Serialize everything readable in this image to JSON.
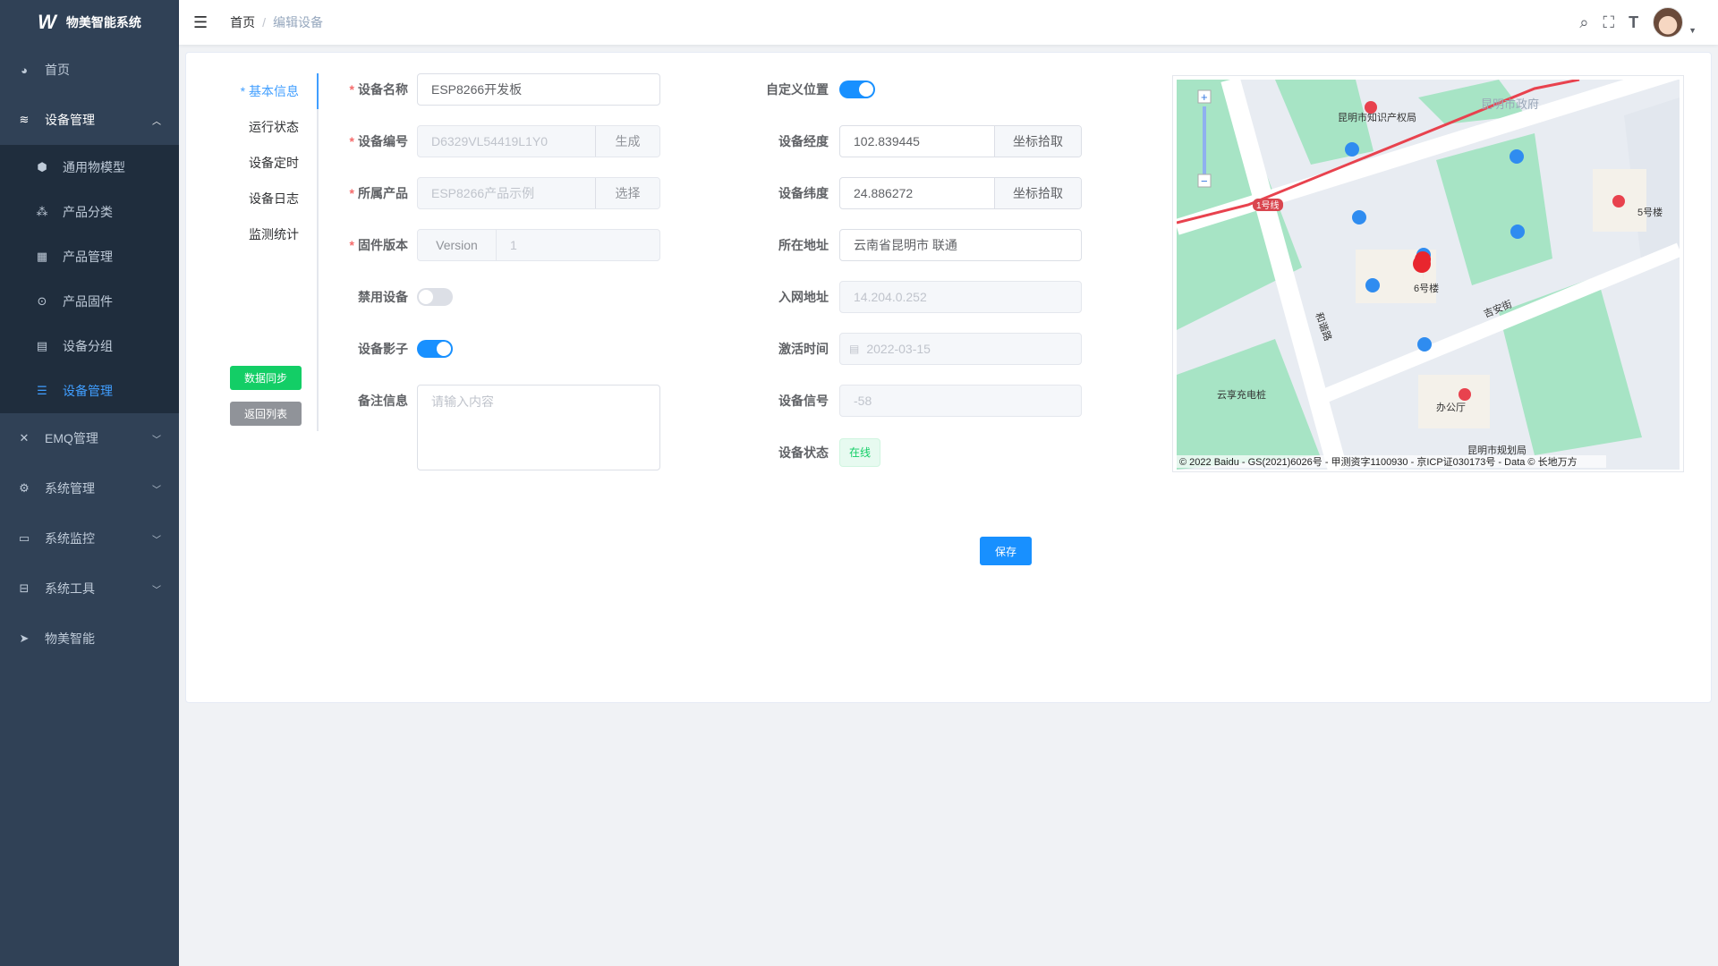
{
  "app": {
    "title": "物美智能系统"
  },
  "sidebar": {
    "items": [
      {
        "label": "首页",
        "icon": "dashboard-icon"
      },
      {
        "label": "设备管理",
        "icon": "layers-icon",
        "expanded": true
      },
      {
        "label": "通用物模型",
        "icon": "cube-icon"
      },
      {
        "label": "产品分类",
        "icon": "tree-icon"
      },
      {
        "label": "产品管理",
        "icon": "grid-icon"
      },
      {
        "label": "产品固件",
        "icon": "firmware-icon"
      },
      {
        "label": "设备分组",
        "icon": "group-icon"
      },
      {
        "label": "设备管理",
        "icon": "list-icon",
        "active": true
      },
      {
        "label": "EMQ管理",
        "icon": "emq-icon"
      },
      {
        "label": "系统管理",
        "icon": "gear-icon"
      },
      {
        "label": "系统监控",
        "icon": "monitor-icon"
      },
      {
        "label": "系统工具",
        "icon": "toolbox-icon"
      },
      {
        "label": "物美智能",
        "icon": "send-icon"
      }
    ]
  },
  "header": {
    "breadcrumb": [
      "首页",
      "编辑设备"
    ]
  },
  "tabs": [
    "* 基本信息",
    "运行状态",
    "设备定时",
    "设备日志",
    "监测统计"
  ],
  "side_buttons": {
    "sync": "数据同步",
    "back": "返回列表"
  },
  "form": {
    "name": {
      "label": "设备名称",
      "value": "ESP8266开发板"
    },
    "serial": {
      "label": "设备编号",
      "value": "D6329VL54419L1Y0",
      "button": "生成"
    },
    "product": {
      "label": "所属产品",
      "value": "ESP8266产品示例",
      "button": "选择"
    },
    "firmware": {
      "label": "固件版本",
      "prefix": "Version",
      "value": "1"
    },
    "disable": {
      "label": "禁用设备",
      "on": false
    },
    "shadow": {
      "label": "设备影子",
      "on": true
    },
    "remark": {
      "label": "备注信息",
      "placeholder": "请输入内容"
    },
    "custom_location": {
      "label": "自定义位置",
      "on": true
    },
    "longitude": {
      "label": "设备经度",
      "value": "102.839445",
      "button": "坐标拾取"
    },
    "latitude": {
      "label": "设备纬度",
      "value": "24.886272",
      "button": "坐标拾取"
    },
    "address": {
      "label": "所在地址",
      "value": "云南省昆明市 联通"
    },
    "network": {
      "label": "入网地址",
      "value": "14.204.0.252"
    },
    "activated": {
      "label": "激活时间",
      "value": "2022-03-15"
    },
    "signal": {
      "label": "设备信号",
      "value": "-58"
    },
    "status": {
      "label": "设备状态",
      "value": "在线"
    }
  },
  "save_label": "保存",
  "map": {
    "labels": [
      "昆明市政府",
      "昆明市知识产权局",
      "1号线",
      "6号楼",
      "5号楼",
      "吉安街",
      "和谐路",
      "云享充电桩",
      "办公厅",
      "昆明市规划局"
    ],
    "copyright": "© 2022 Baidu - GS(2021)6026号 - 甲测资字1100930 - 京ICP证030173号 - Data © 长地万方"
  },
  "colors": {
    "sidebar": "#304156",
    "primary": "#1890ff",
    "success": "#13ce66",
    "required": "#f56c6c"
  }
}
